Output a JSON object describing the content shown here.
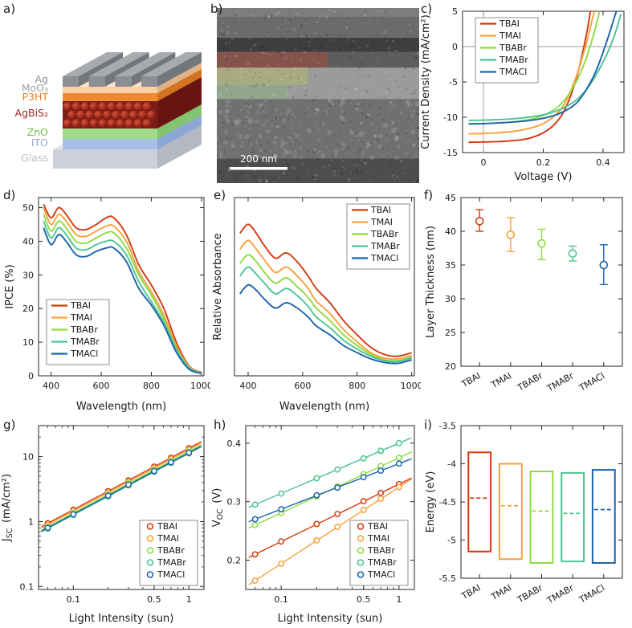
{
  "figure": {
    "panel_labels": {
      "a": "a)",
      "b": "b)",
      "c": "c)",
      "d": "d)",
      "e": "e)",
      "f": "f)",
      "g": "g)",
      "h": "h)",
      "i": "i)"
    }
  },
  "series": {
    "names": [
      "TBAI",
      "TMAI",
      "TBABr",
      "TMABr",
      "TMACl"
    ],
    "colors": [
      "#d23a0e",
      "#f6a13c",
      "#8ddc3f",
      "#4cc491",
      "#1b63ac"
    ]
  },
  "panel_a": {
    "layer_labels": [
      {
        "text": "Ag",
        "color": "#8f9396"
      },
      {
        "text": "MoO₃",
        "color": "#9f9f9f"
      },
      {
        "text": "P3HT",
        "color": "#ee7e23"
      },
      {
        "text": "AgBiS₂",
        "color": "#a3251e"
      },
      {
        "text": "ZnO",
        "color": "#70c04e"
      },
      {
        "text": "ITO",
        "color": "#92abd9"
      },
      {
        "text": "Glass",
        "color": "#b9bec6"
      }
    ]
  },
  "panel_b": {
    "scalebar_label": "200 nm"
  },
  "chart_data": [
    {
      "panel": "c",
      "type": "line",
      "xlabel": "Voltage (V)",
      "ylabel": "Current Density (mA/cm²)",
      "xlim": [
        -0.07,
        0.47
      ],
      "ylim": [
        -15,
        5
      ],
      "xticks": [
        0,
        0.2,
        0.4
      ],
      "yticks": [
        -15,
        -10,
        -5,
        0,
        5
      ],
      "legend_position": "top-left",
      "series": [
        {
          "name": "TBAI",
          "points": [
            [
              -0.05,
              -13.55
            ],
            [
              0,
              -13.5
            ],
            [
              0.05,
              -13.45
            ],
            [
              0.1,
              -13.3
            ],
            [
              0.15,
              -13.0
            ],
            [
              0.2,
              -12.2
            ],
            [
              0.24,
              -10.9
            ],
            [
              0.27,
              -9.1
            ],
            [
              0.3,
              -6.0
            ],
            [
              0.32,
              -3.0
            ],
            [
              0.34,
              0.8
            ],
            [
              0.35,
              3.0
            ],
            [
              0.36,
              5.6
            ]
          ]
        },
        {
          "name": "TMAI",
          "points": [
            [
              -0.05,
              -12.35
            ],
            [
              0,
              -12.3
            ],
            [
              0.05,
              -12.2
            ],
            [
              0.1,
              -12.0
            ],
            [
              0.15,
              -11.6
            ],
            [
              0.2,
              -10.9
            ],
            [
              0.25,
              -9.3
            ],
            [
              0.28,
              -7.4
            ],
            [
              0.31,
              -4.3
            ],
            [
              0.33,
              -1.6
            ],
            [
              0.345,
              0.6
            ],
            [
              0.36,
              3.2
            ],
            [
              0.375,
              5.6
            ]
          ]
        },
        {
          "name": "TBABr",
          "points": [
            [
              -0.05,
              -10.95
            ],
            [
              0,
              -10.9
            ],
            [
              0.05,
              -10.82
            ],
            [
              0.1,
              -10.65
            ],
            [
              0.15,
              -10.35
            ],
            [
              0.2,
              -9.75
            ],
            [
              0.25,
              -8.5
            ],
            [
              0.29,
              -6.5
            ],
            [
              0.32,
              -4.1
            ],
            [
              0.34,
              -2.1
            ],
            [
              0.355,
              -0.2
            ],
            [
              0.37,
              1.9
            ],
            [
              0.385,
              4.4
            ],
            [
              0.393,
              5.8
            ]
          ]
        },
        {
          "name": "TMABr",
          "points": [
            [
              -0.05,
              -10.45
            ],
            [
              0,
              -10.4
            ],
            [
              0.05,
              -10.33
            ],
            [
              0.1,
              -10.22
            ],
            [
              0.15,
              -10.0
            ],
            [
              0.2,
              -9.65
            ],
            [
              0.25,
              -9.0
            ],
            [
              0.3,
              -7.9
            ],
            [
              0.34,
              -6.3
            ],
            [
              0.37,
              -4.5
            ],
            [
              0.4,
              -2.2
            ],
            [
              0.42,
              -0.4
            ],
            [
              0.44,
              1.8
            ],
            [
              0.46,
              4.6
            ]
          ]
        },
        {
          "name": "TMACl",
          "points": [
            [
              -0.05,
              -10.95
            ],
            [
              0,
              -10.9
            ],
            [
              0.05,
              -10.8
            ],
            [
              0.1,
              -10.68
            ],
            [
              0.15,
              -10.48
            ],
            [
              0.2,
              -10.15
            ],
            [
              0.25,
              -9.55
            ],
            [
              0.3,
              -8.4
            ],
            [
              0.33,
              -7.0
            ],
            [
              0.36,
              -4.9
            ],
            [
              0.38,
              -3.1
            ],
            [
              0.4,
              -0.8
            ],
            [
              0.42,
              1.7
            ],
            [
              0.44,
              4.4
            ],
            [
              0.452,
              5.8
            ]
          ]
        }
      ]
    },
    {
      "panel": "d",
      "type": "line",
      "xlabel": "Wavelength (nm)",
      "ylabel": "IPCE (%)",
      "xlim": [
        350,
        1010
      ],
      "ylim": [
        0,
        53
      ],
      "xticks": [
        400,
        600,
        800,
        1000
      ],
      "yticks": [
        0,
        10,
        20,
        30,
        40,
        50
      ],
      "legend_position": "bottom-left",
      "x": [
        370,
        400,
        430,
        460,
        500,
        540,
        580,
        620,
        650,
        700,
        750,
        800,
        850,
        900,
        950,
        1000
      ],
      "series": [
        {
          "name": "TBAI",
          "values": [
            51,
            47,
            50,
            48,
            44,
            43.5,
            45,
            47,
            47,
            42,
            33,
            27,
            20,
            10,
            3,
            1
          ]
        },
        {
          "name": "TMAI",
          "values": [
            50,
            45,
            48,
            46,
            42,
            41.5,
            43,
            44.5,
            44.5,
            40,
            31,
            25,
            18,
            9,
            2.8,
            0.9
          ]
        },
        {
          "name": "TBABr",
          "values": [
            48,
            43,
            46,
            44,
            40,
            39.5,
            41,
            42.5,
            42.5,
            38,
            30,
            24,
            17,
            8,
            2.5,
            0.8
          ]
        },
        {
          "name": "TMABr",
          "values": [
            46,
            41,
            44,
            42,
            38,
            37.5,
            39,
            40,
            40,
            36,
            28,
            22,
            16,
            8,
            2.4,
            0.8
          ]
        },
        {
          "name": "TMACl",
          "values": [
            44,
            39,
            42,
            40,
            36,
            35.5,
            37,
            38,
            38,
            34,
            26,
            21,
            15,
            7,
            2,
            0.7
          ]
        }
      ]
    },
    {
      "panel": "e",
      "type": "line",
      "xlabel": "Wavelength (nm)",
      "ylabel": "Relative Absorbance",
      "xlim": [
        350,
        1010
      ],
      "ylim": [
        0,
        1
      ],
      "xticks": [
        400,
        600,
        800,
        1000
      ],
      "yticks": [],
      "legend_position": "top-right",
      "x": [
        370,
        400,
        430,
        460,
        500,
        540,
        580,
        620,
        650,
        700,
        750,
        800,
        850,
        900,
        950,
        1000
      ],
      "series": [
        {
          "name": "TBAI",
          "values": [
            0.8,
            0.85,
            0.8,
            0.73,
            0.66,
            0.69,
            0.64,
            0.56,
            0.49,
            0.41,
            0.31,
            0.23,
            0.16,
            0.12,
            0.11,
            0.13
          ]
        },
        {
          "name": "TMAI",
          "values": [
            0.71,
            0.76,
            0.71,
            0.65,
            0.58,
            0.61,
            0.56,
            0.49,
            0.42,
            0.35,
            0.26,
            0.19,
            0.13,
            0.1,
            0.095,
            0.115
          ]
        },
        {
          "name": "TBABr",
          "values": [
            0.63,
            0.68,
            0.64,
            0.58,
            0.52,
            0.55,
            0.5,
            0.44,
            0.38,
            0.31,
            0.23,
            0.17,
            0.12,
            0.09,
            0.085,
            0.105
          ]
        },
        {
          "name": "TMABr",
          "values": [
            0.56,
            0.61,
            0.57,
            0.52,
            0.46,
            0.49,
            0.45,
            0.39,
            0.33,
            0.27,
            0.2,
            0.15,
            0.11,
            0.085,
            0.08,
            0.1
          ]
        },
        {
          "name": "TMACl",
          "values": [
            0.46,
            0.51,
            0.48,
            0.43,
            0.38,
            0.41,
            0.38,
            0.33,
            0.28,
            0.23,
            0.17,
            0.13,
            0.095,
            0.075,
            0.07,
            0.09
          ]
        }
      ]
    },
    {
      "panel": "f",
      "type": "errorbar",
      "ylabel": "Layer Thickness (nm)",
      "ylim": [
        20,
        45
      ],
      "yticks": [
        20,
        25,
        30,
        35,
        40,
        45
      ],
      "categories": [
        "TBAI",
        "TMAI",
        "TBABr",
        "TMABr",
        "TMACl"
      ],
      "values": [
        41.5,
        39.5,
        38.2,
        36.7,
        35.0
      ],
      "err_lo": [
        40.0,
        37.0,
        35.8,
        35.6,
        32.1
      ],
      "err_hi": [
        43.2,
        42.0,
        40.3,
        37.8,
        38.0
      ]
    },
    {
      "panel": "g",
      "type": "scatter-line",
      "xscale": "log",
      "yscale": "log",
      "xlabel": "Light Intensity (sun)",
      "ylabel": "J_{SC} (mA/cm²)",
      "xlim": [
        0.05,
        1.35
      ],
      "ylim": [
        0.09,
        30
      ],
      "xticks": [
        {
          "v": 0.1,
          "l": "0.1"
        },
        {
          "v": 0.5,
          "l": "0.5"
        },
        {
          "v": 1,
          "l": "1"
        }
      ],
      "yticks": [
        {
          "v": 0.1,
          "l": "0.1"
        },
        {
          "v": 1,
          "l": "1"
        },
        {
          "v": 10,
          "l": "10"
        }
      ],
      "legend_position": "bottom-right",
      "x": [
        0.06,
        0.1,
        0.2,
        0.3,
        0.5,
        0.7,
        1
      ],
      "series": [
        {
          "name": "TBAI",
          "values": [
            0.94,
            1.52,
            2.93,
            4.3,
            7.0,
            9.6,
            13.5
          ]
        },
        {
          "name": "TMAI",
          "values": [
            0.89,
            1.44,
            2.78,
            4.1,
            6.65,
            9.1,
            12.8
          ]
        },
        {
          "name": "TBABr",
          "values": [
            0.83,
            1.35,
            2.6,
            3.85,
            6.2,
            8.5,
            12.0
          ]
        },
        {
          "name": "TMABr",
          "values": [
            0.78,
            1.26,
            2.43,
            3.6,
            5.8,
            8.0,
            11.2
          ]
        },
        {
          "name": "TMACl",
          "values": [
            0.8,
            1.29,
            2.5,
            3.7,
            6.0,
            8.2,
            11.5
          ]
        }
      ]
    },
    {
      "panel": "h",
      "type": "scatter-line",
      "xscale": "log",
      "xlabel": "Light Intensity (sun)",
      "ylabel": "V_{OC} (V)",
      "xlim": [
        0.05,
        1.35
      ],
      "ylim": [
        0.15,
        0.43
      ],
      "xticks": [
        {
          "v": 0.1,
          "l": "0.1"
        },
        {
          "v": 0.5,
          "l": "0.5"
        },
        {
          "v": 1,
          "l": "1"
        }
      ],
      "yticks": [
        {
          "v": 0.2,
          "l": "0.2"
        },
        {
          "v": 0.3,
          "l": "0.3"
        },
        {
          "v": 0.4,
          "l": "0.4"
        }
      ],
      "legend_position": "bottom-right",
      "x": [
        0.06,
        0.1,
        0.2,
        0.3,
        0.5,
        0.7,
        1
      ],
      "series": [
        {
          "name": "TBAI",
          "values": [
            0.21,
            0.232,
            0.262,
            0.279,
            0.301,
            0.315,
            0.33
          ]
        },
        {
          "name": "TMAI",
          "values": [
            0.165,
            0.194,
            0.234,
            0.257,
            0.286,
            0.305,
            0.325
          ]
        },
        {
          "name": "TBABr",
          "values": [
            0.26,
            0.281,
            0.309,
            0.326,
            0.347,
            0.361,
            0.375
          ]
        },
        {
          "name": "TMABr",
          "values": [
            0.295,
            0.314,
            0.34,
            0.355,
            0.374,
            0.387,
            0.4
          ]
        },
        {
          "name": "TMACl",
          "values": [
            0.27,
            0.287,
            0.311,
            0.324,
            0.342,
            0.353,
            0.365
          ]
        }
      ]
    },
    {
      "panel": "i",
      "type": "energy-levels",
      "ylabel": "Energy (eV)",
      "ylim": [
        -5.5,
        -3.5
      ],
      "yticks": [
        {
          "v": -3.5,
          "l": "-3.5"
        },
        {
          "v": -4,
          "l": "-4"
        },
        {
          "v": -4.5,
          "l": "-4.5"
        },
        {
          "v": -5,
          "l": "-5"
        },
        {
          "v": -5.5,
          "l": "-5.5"
        }
      ],
      "categories": [
        "TBAI",
        "TMAI",
        "TBABr",
        "TMABr",
        "TMACl"
      ],
      "band_top": [
        -3.85,
        -4.0,
        -4.1,
        -4.12,
        -4.08
      ],
      "band_bottom": [
        -5.15,
        -5.25,
        -5.3,
        -5.28,
        -5.3
      ],
      "fermi_level": [
        -4.45,
        -4.55,
        -4.62,
        -4.65,
        -4.6
      ]
    }
  ]
}
